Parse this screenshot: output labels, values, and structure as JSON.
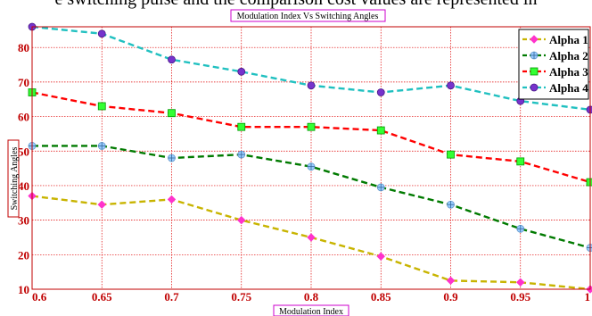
{
  "clipped_caption": "e switching pulse and the comparison cost values are represented in",
  "chart_data": {
    "type": "line",
    "title": "Modulation Index Vs Switching Angles",
    "xlabel": "Modulation Index",
    "ylabel": "Switching Angles",
    "x": [
      0.6,
      0.65,
      0.7,
      0.75,
      0.8,
      0.85,
      0.9,
      0.95,
      1.0
    ],
    "x_tick_labels": [
      "0.6",
      "0.65",
      "0.7",
      "0.75",
      "0.8",
      "0.85",
      "0.9",
      "0.95",
      "1"
    ],
    "y_tick_labels": [
      "10",
      "20",
      "30",
      "40",
      "50",
      "60",
      "70",
      "80"
    ],
    "xlim": [
      0.6,
      1.0
    ],
    "ylim": [
      10,
      86
    ],
    "grid": true,
    "legend_position": "top-right",
    "series": [
      {
        "name": "Alpha 1",
        "color": "#c8b400",
        "marker_color": "#ff33cc",
        "marker": "diamond",
        "values": [
          37,
          34.5,
          36,
          30,
          25,
          19.5,
          12.5,
          12,
          10
        ]
      },
      {
        "name": "Alpha 2",
        "color": "#007a00",
        "marker_color": "#99ccff",
        "marker": "circle-plus",
        "values": [
          51.5,
          51.5,
          48,
          49,
          45.5,
          39.5,
          34.5,
          27.5,
          22
        ]
      },
      {
        "name": "Alpha 3",
        "color": "#ff0000",
        "marker_color": "#33ff33",
        "marker": "square",
        "values": [
          67,
          63,
          61,
          57,
          57,
          56,
          49,
          47,
          41
        ]
      },
      {
        "name": "Alpha 4",
        "color": "#20c0c0",
        "marker_color": "#7733cc",
        "marker": "circle",
        "values": [
          86,
          84,
          76.5,
          73,
          69,
          67,
          69,
          64.5,
          62
        ]
      }
    ]
  }
}
